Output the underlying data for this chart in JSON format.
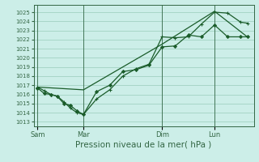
{
  "xlabel": "Pression niveau de la mer( hPa )",
  "background_color": "#cceee8",
  "grid_color": "#99ccbb",
  "line_color": "#1a5c2a",
  "spine_color": "#336644",
  "ylim_min": 1012.5,
  "ylim_max": 1025.8,
  "yticks": [
    1013,
    1014,
    1015,
    1016,
    1017,
    1018,
    1019,
    1020,
    1021,
    1022,
    1023,
    1024,
    1025
  ],
  "day_labels": [
    "Sam",
    "Mar",
    "Dim",
    "Lun"
  ],
  "day_positions": [
    0,
    3.5,
    9.5,
    13.5
  ],
  "xlim_min": -0.3,
  "xlim_max": 16.5,
  "series1_x": [
    0,
    0.5,
    1.0,
    1.5,
    2.0,
    2.5,
    3.0,
    3.5,
    4.5,
    5.5,
    6.5,
    7.5,
    8.5,
    9.5,
    10.5,
    11.5,
    12.5,
    13.5,
    14.5,
    15.5,
    16.0
  ],
  "series1_y": [
    1016.7,
    1016.1,
    1016.0,
    1015.8,
    1015.0,
    1014.8,
    1014.2,
    1013.8,
    1016.3,
    1017.0,
    1018.5,
    1018.7,
    1019.2,
    1021.2,
    1021.3,
    1022.5,
    1022.3,
    1023.6,
    1022.3,
    1022.3,
    1022.3
  ],
  "series2_x": [
    0,
    0.5,
    1.0,
    1.5,
    2.0,
    2.5,
    3.0,
    3.5,
    4.5,
    5.5,
    6.5,
    7.5,
    8.5,
    9.5,
    10.5,
    11.5,
    12.5,
    13.5,
    14.5,
    15.5,
    16.0
  ],
  "series2_y": [
    1016.8,
    1016.4,
    1016.0,
    1015.8,
    1015.2,
    1014.5,
    1014.0,
    1013.8,
    1015.5,
    1016.5,
    1018.0,
    1018.8,
    1019.3,
    1022.3,
    1022.2,
    1022.3,
    1023.7,
    1025.0,
    1024.9,
    1023.9,
    1023.8
  ],
  "series3_x": [
    0,
    3.5,
    9.5,
    13.5,
    16.0
  ],
  "series3_y": [
    1016.8,
    1016.5,
    1021.5,
    1025.1,
    1022.3
  ]
}
